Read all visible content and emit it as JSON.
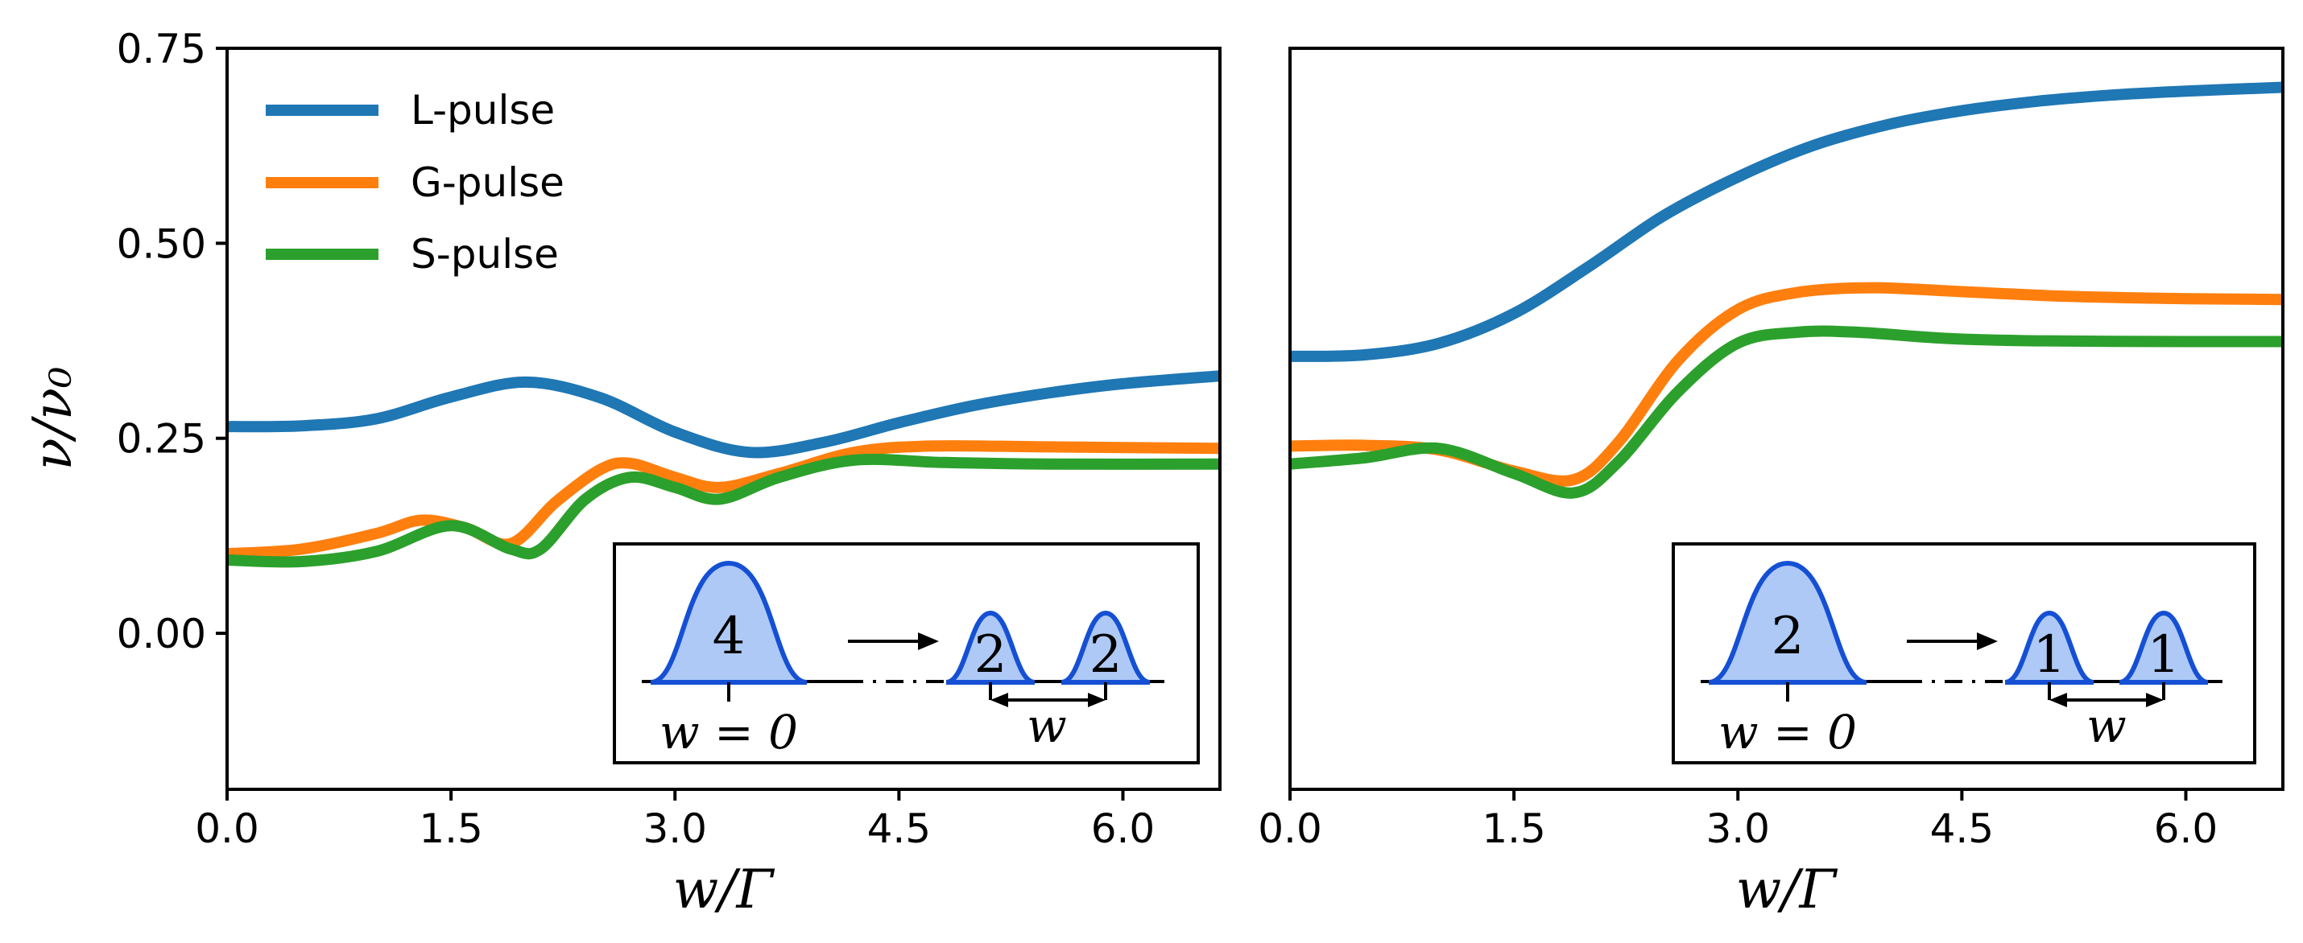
{
  "chart_data": [
    {
      "type": "line",
      "panel": "left",
      "xlabel": "w/Γ",
      "ylabel": "ν/ν₀",
      "xlim": [
        0,
        6.65
      ],
      "ylim": [
        -0.2,
        0.75
      ],
      "xticks": [
        "0.0",
        "1.5",
        "3.0",
        "4.5",
        "6.0"
      ],
      "xtick_values": [
        0,
        1.5,
        3.0,
        4.5,
        6.0
      ],
      "yticks": [
        "0.00",
        "0.25",
        "0.50",
        "0.75"
      ],
      "ytick_values": [
        0,
        0.25,
        0.5,
        0.75
      ],
      "legend": {
        "placement": "top-left",
        "entries": [
          "L-pulse",
          "G-pulse",
          "S-pulse"
        ]
      },
      "series": [
        {
          "name": "L-pulse",
          "color": "#1f77b4",
          "x": [
            0,
            0.5,
            1.0,
            1.5,
            2.0,
            2.5,
            3.0,
            3.5,
            4.0,
            4.5,
            5.0,
            5.5,
            6.0,
            6.65
          ],
          "y": [
            0.265,
            0.266,
            0.275,
            0.303,
            0.322,
            0.302,
            0.258,
            0.232,
            0.245,
            0.27,
            0.292,
            0.308,
            0.32,
            0.33
          ]
        },
        {
          "name": "G-pulse",
          "color": "#ff7f0e",
          "x": [
            0,
            0.5,
            1.0,
            1.3,
            1.6,
            1.9,
            2.2,
            2.5,
            2.7,
            3.0,
            3.3,
            3.7,
            4.2,
            4.7,
            5.5,
            6.65
          ],
          "y": [
            0.102,
            0.108,
            0.128,
            0.145,
            0.135,
            0.115,
            0.168,
            0.21,
            0.218,
            0.2,
            0.187,
            0.205,
            0.232,
            0.24,
            0.239,
            0.237
          ]
        },
        {
          "name": "S-pulse",
          "color": "#2ca02c",
          "x": [
            0,
            0.5,
            1.0,
            1.5,
            1.9,
            2.1,
            2.4,
            2.7,
            3.0,
            3.3,
            3.7,
            4.2,
            4.8,
            5.5,
            6.65
          ],
          "y": [
            0.094,
            0.092,
            0.105,
            0.138,
            0.108,
            0.108,
            0.172,
            0.2,
            0.187,
            0.172,
            0.2,
            0.222,
            0.219,
            0.217,
            0.217
          ]
        }
      ],
      "inset": {
        "before_number": "4",
        "after_numbers": [
          "2",
          "2"
        ],
        "left_label": "w = 0",
        "right_label": "w"
      }
    },
    {
      "type": "line",
      "panel": "right",
      "xlabel": "w/Γ",
      "xlim": [
        0,
        6.65
      ],
      "ylim": [
        -0.2,
        0.75
      ],
      "xticks": [
        "0.0",
        "1.5",
        "3.0",
        "4.5",
        "6.0"
      ],
      "xtick_values": [
        0,
        1.5,
        3.0,
        4.5,
        6.0
      ],
      "series": [
        {
          "name": "L-pulse",
          "color": "#1f77b4",
          "x": [
            0,
            0.5,
            1.0,
            1.5,
            2.0,
            2.5,
            3.0,
            3.5,
            4.0,
            4.5,
            5.0,
            5.5,
            6.0,
            6.65
          ],
          "y": [
            0.355,
            0.357,
            0.372,
            0.41,
            0.47,
            0.535,
            0.585,
            0.625,
            0.652,
            0.67,
            0.682,
            0.69,
            0.695,
            0.7
          ]
        },
        {
          "name": "G-pulse",
          "color": "#ff7f0e",
          "x": [
            0,
            0.5,
            1.0,
            1.5,
            1.9,
            2.2,
            2.6,
            3.0,
            3.4,
            3.9,
            4.5,
            5.2,
            6.0,
            6.65
          ],
          "y": [
            0.24,
            0.241,
            0.235,
            0.208,
            0.197,
            0.245,
            0.35,
            0.415,
            0.437,
            0.443,
            0.438,
            0.432,
            0.429,
            0.428
          ]
        },
        {
          "name": "S-pulse",
          "color": "#2ca02c",
          "x": [
            0,
            0.5,
            1.0,
            1.5,
            1.9,
            2.2,
            2.6,
            3.0,
            3.4,
            3.8,
            4.4,
            5.0,
            6.0,
            6.65
          ],
          "y": [
            0.217,
            0.225,
            0.237,
            0.205,
            0.18,
            0.22,
            0.31,
            0.372,
            0.386,
            0.386,
            0.378,
            0.375,
            0.374,
            0.374
          ]
        }
      ],
      "inset": {
        "before_number": "2",
        "after_numbers": [
          "1",
          "1"
        ],
        "left_label": "w = 0",
        "right_label": "w"
      }
    }
  ]
}
